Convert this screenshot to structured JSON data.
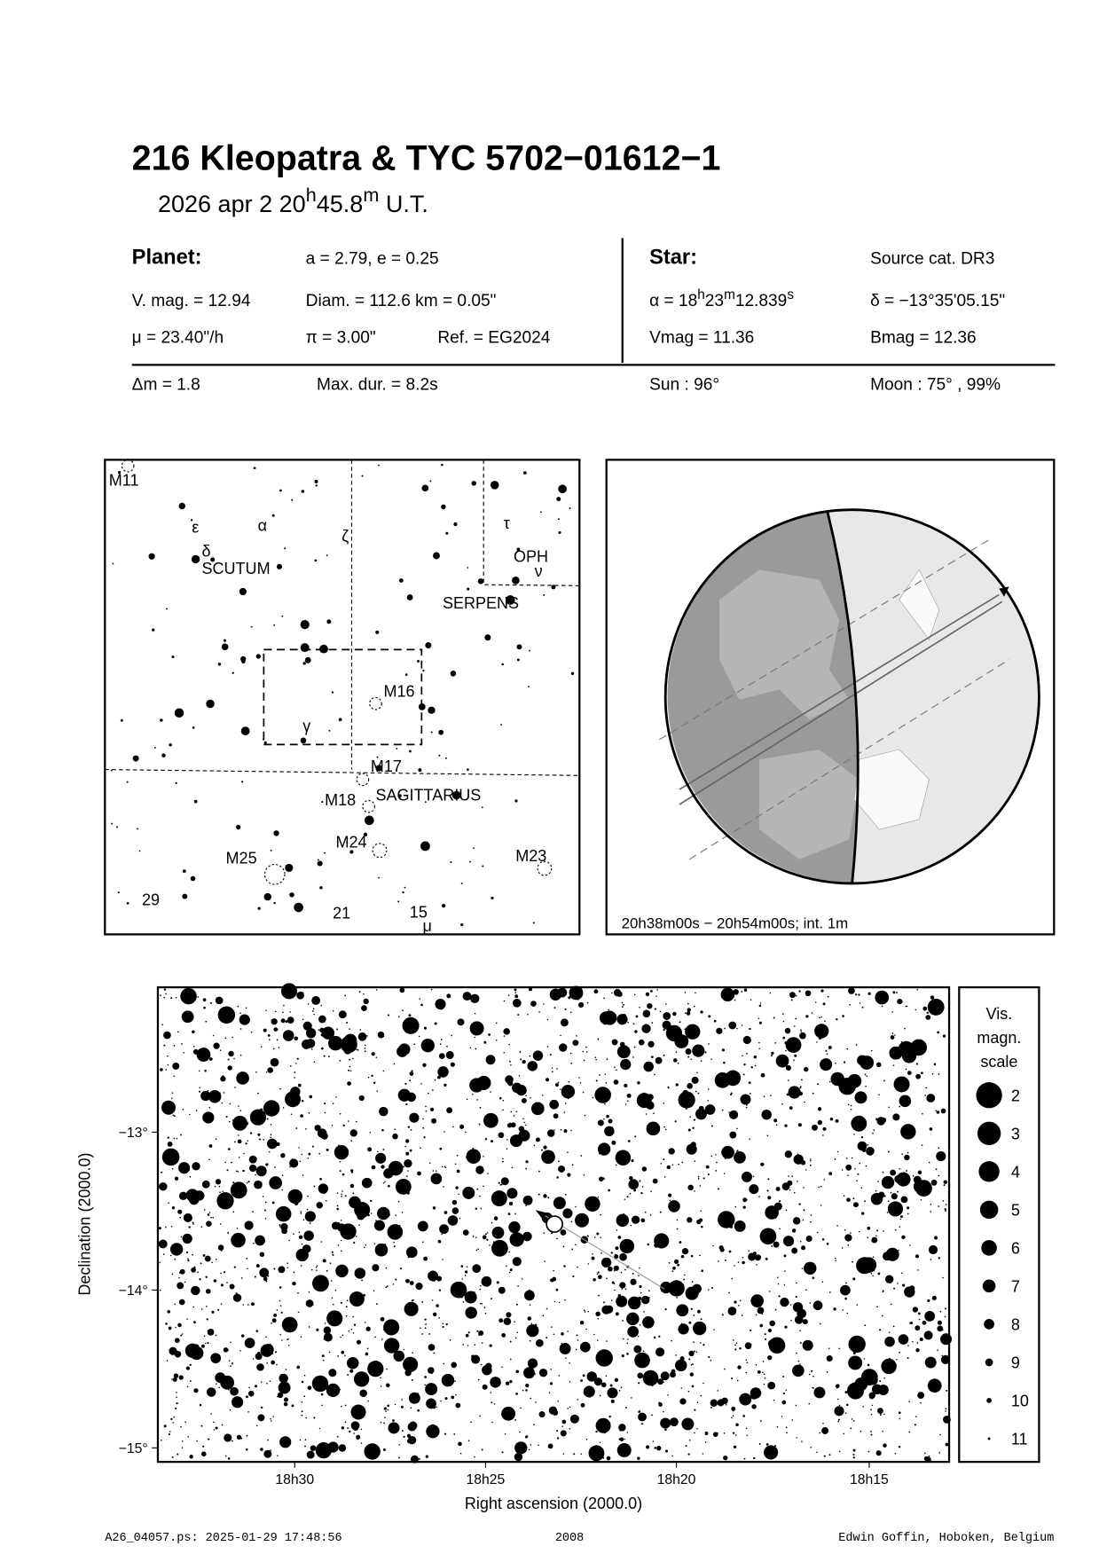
{
  "header": {
    "title": "216 Kleopatra  &  TYC 5702−01612−1",
    "date": [
      "2026 apr  2  20",
      "h",
      "45.8",
      "m",
      " U.T."
    ]
  },
  "planet": {
    "heading": "Planet:",
    "orbit": "a = 2.79, e = 0.25",
    "vmag": "V. mag. = 12.94",
    "diam": "Diam. = 112.6 km = 0.05\"",
    "mu": "μ =  23.40\"/h",
    "pi": "π =  3.00\"",
    "ref": "Ref. = EG2024",
    "dm": "Δm = 1.8",
    "maxdur": "Max. dur. = 8.2s"
  },
  "star": {
    "heading": "Star:",
    "source": "Source cat.  DR3",
    "ra": [
      "α = 18",
      "h",
      "23",
      "m",
      "12.839",
      "s"
    ],
    "dec": "δ = −13°35'05.15\"",
    "vmag": "Vmag = 11.36",
    "bmag": "Bmag = 12.36",
    "sun": "Sun :  96°",
    "moon": "Moon :  75° , 99%"
  },
  "finder": {
    "labels": [
      "M11",
      "ε",
      "α",
      "δ",
      "SCUTUM",
      "ζ",
      "τ",
      "OPH",
      "ν",
      "SERPENS",
      "M16",
      "γ",
      "M17",
      "M18",
      "SAGITTARIUS",
      "M24",
      "M25",
      "M23",
      "29",
      "21",
      "15",
      "μ"
    ]
  },
  "globe": {
    "caption": "20h38m00s − 20h54m00s; int.  1m"
  },
  "starchart": {
    "yticks": [
      "−13°",
      "−14°",
      "−15°"
    ],
    "xticks": [
      "18h30",
      "18h25",
      "18h20",
      "18h15"
    ],
    "xlabel": "Right ascension (2000.0)",
    "ylabel": "Declination (2000.0)"
  },
  "scale": {
    "title": [
      "Vis.",
      "magn.",
      "scale"
    ],
    "magnitudes": [
      "2",
      "3",
      "4",
      "5",
      "6",
      "7",
      "8",
      "9",
      "10",
      "11"
    ]
  },
  "footer": {
    "left": "A26_04057.ps: 2025-01-29 17:48:56",
    "center": "2008",
    "right": "Edwin Goffin, Hoboken, Belgium"
  }
}
